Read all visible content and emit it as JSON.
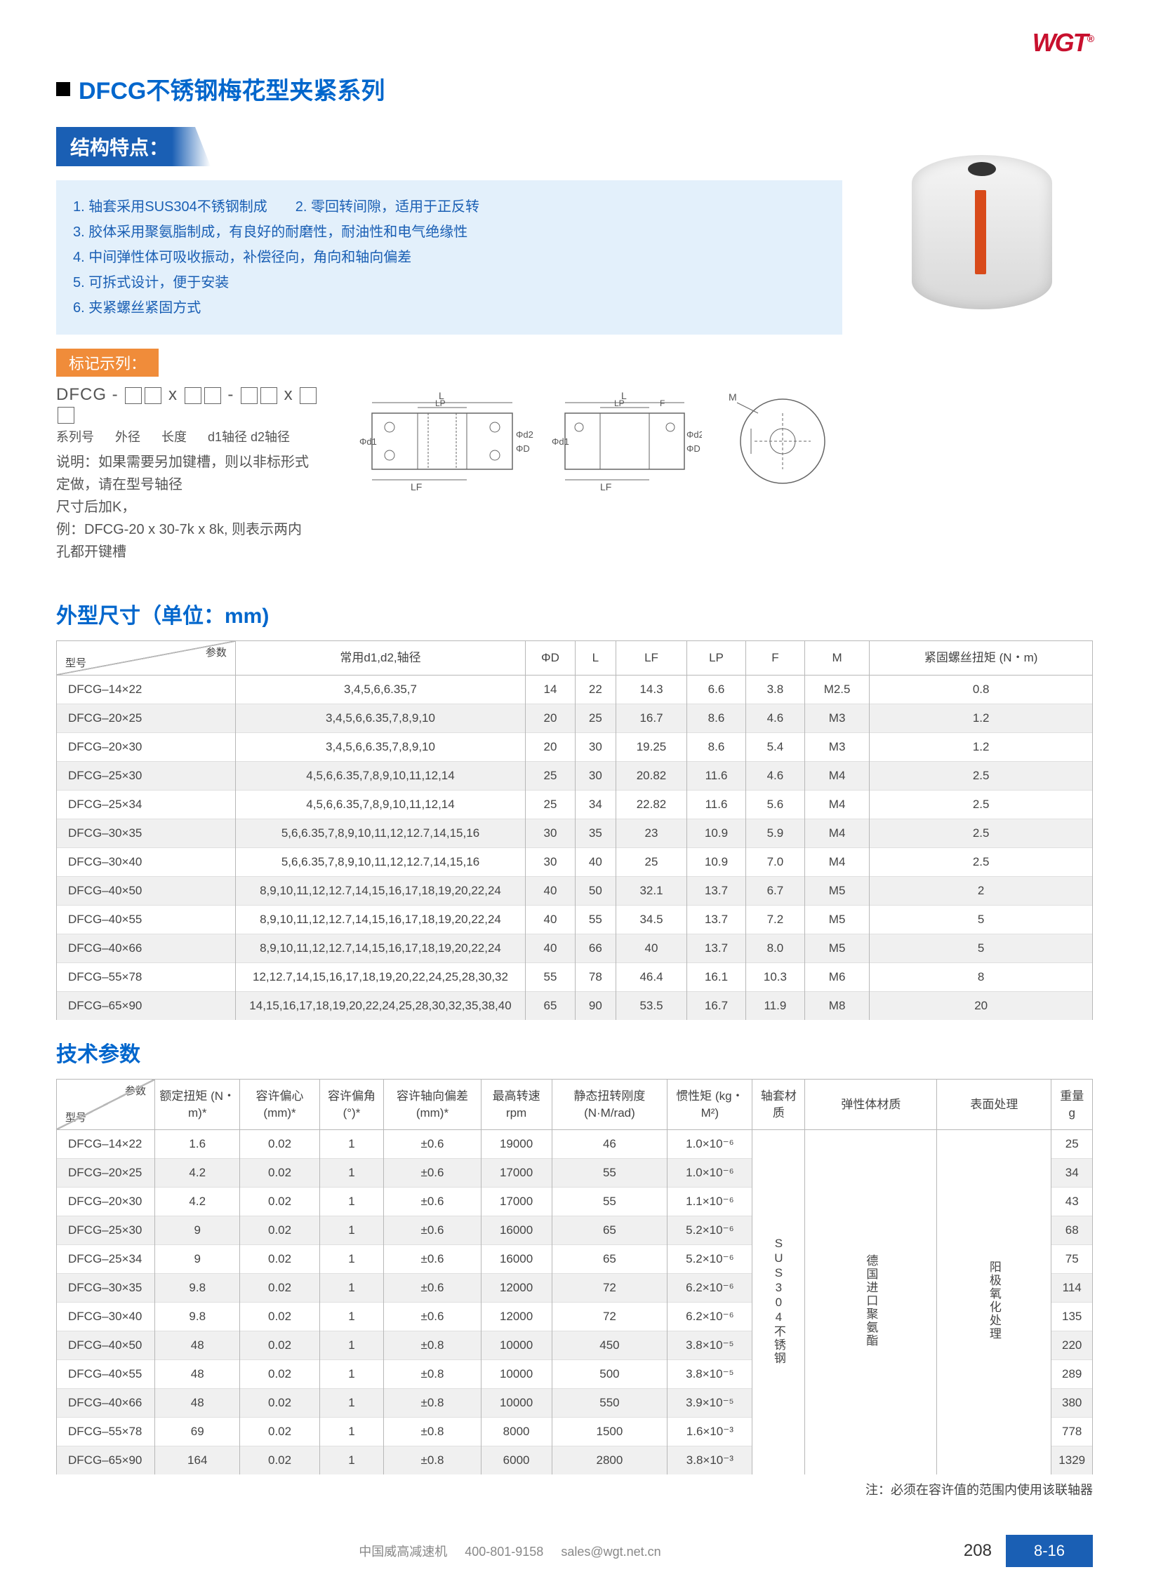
{
  "brand": "WGT",
  "main_title": "DFCG不锈钢梅花型夹紧系列",
  "section_struct": "结构特点：",
  "features": [
    "1. 轴套采用SUS304不锈钢制成",
    "2. 零回转间隙，适用于正反转",
    "3. 胶体采用聚氨脂制成，有良好的耐磨性，耐油性和电气绝缘性",
    "4. 中间弹性体可吸收振动，补偿径向，角向和轴向偏差",
    "5. 可拆式设计，便于安装",
    "6. 夹紧螺丝紧固方式"
  ],
  "marking_title": "标记示列：",
  "marking_code_prefix": "DFCG - ",
  "marking_labels": [
    "系列号",
    "外径",
    "长度",
    "d1轴径 d2轴径"
  ],
  "marking_desc_lines": [
    "说明：如果需要另加键槽，则以非标形式",
    "定做，请在型号轴径",
    "尺寸后加K，",
    "例：DFCG-20 x 30-7k x 8k, 则表示两内",
    "孔都开键槽"
  ],
  "section_dims": "外型尺寸（单位：mm)",
  "section_tech": "技术参数",
  "dims_table": {
    "header_corner": {
      "param": "参数",
      "model": "型号"
    },
    "columns": [
      "常用d1,d2,轴径",
      "ΦD",
      "L",
      "LF",
      "LP",
      "F",
      "M",
      "紧固螺丝扭矩 (N・m)"
    ],
    "rows": [
      [
        "DFCG–14×22",
        "3,4,5,6,6.35,7",
        "14",
        "22",
        "14.3",
        "6.6",
        "3.8",
        "M2.5",
        "0.8"
      ],
      [
        "DFCG–20×25",
        "3,4,5,6,6.35,7,8,9,10",
        "20",
        "25",
        "16.7",
        "8.6",
        "4.6",
        "M3",
        "1.2"
      ],
      [
        "DFCG–20×30",
        "3,4,5,6,6.35,7,8,9,10",
        "20",
        "30",
        "19.25",
        "8.6",
        "5.4",
        "M3",
        "1.2"
      ],
      [
        "DFCG–25×30",
        "4,5,6,6.35,7,8,9,10,11,12,14",
        "25",
        "30",
        "20.82",
        "11.6",
        "4.6",
        "M4",
        "2.5"
      ],
      [
        "DFCG–25×34",
        "4,5,6,6.35,7,8,9,10,11,12,14",
        "25",
        "34",
        "22.82",
        "11.6",
        "5.6",
        "M4",
        "2.5"
      ],
      [
        "DFCG–30×35",
        "5,6,6.35,7,8,9,10,11,12,12.7,14,15,16",
        "30",
        "35",
        "23",
        "10.9",
        "5.9",
        "M4",
        "2.5"
      ],
      [
        "DFCG–30×40",
        "5,6,6.35,7,8,9,10,11,12,12.7,14,15,16",
        "30",
        "40",
        "25",
        "10.9",
        "7.0",
        "M4",
        "2.5"
      ],
      [
        "DFCG–40×50",
        "8,9,10,11,12,12.7,14,15,16,17,18,19,20,22,24",
        "40",
        "50",
        "32.1",
        "13.7",
        "6.7",
        "M5",
        "2"
      ],
      [
        "DFCG–40×55",
        "8,9,10,11,12,12.7,14,15,16,17,18,19,20,22,24",
        "40",
        "55",
        "34.5",
        "13.7",
        "7.2",
        "M5",
        "5"
      ],
      [
        "DFCG–40×66",
        "8,9,10,11,12,12.7,14,15,16,17,18,19,20,22,24",
        "40",
        "66",
        "40",
        "13.7",
        "8.0",
        "M5",
        "5"
      ],
      [
        "DFCG–55×78",
        "12,12.7,14,15,16,17,18,19,20,22,24,25,28,30,32",
        "55",
        "78",
        "46.4",
        "16.1",
        "10.3",
        "M6",
        "8"
      ],
      [
        "DFCG–65×90",
        "14,15,16,17,18,19,20,22,24,25,28,30,32,35,38,40",
        "65",
        "90",
        "53.5",
        "16.7",
        "11.9",
        "M8",
        "20"
      ]
    ]
  },
  "tech_table": {
    "header_corner": {
      "param": "参数",
      "model": "型号"
    },
    "columns": [
      "额定扭矩 (N・m)*",
      "容许偏心 (mm)*",
      "容许偏角 (°)*",
      "容许轴向偏差 (mm)*",
      "最高转速 rpm",
      "静态扭转刚度 (N·M/rad)",
      "惯性矩 (kg・M²)",
      "轴套材质",
      "弹性体材质",
      "表面处理",
      "重量 g"
    ],
    "shaft_material": "SUS304不锈钢",
    "elastic_material": "德国进口聚氨酯",
    "surface_treatment": "阳极氧化处理",
    "rows": [
      [
        "DFCG–14×22",
        "1.6",
        "0.02",
        "1",
        "±0.6",
        "19000",
        "46",
        "1.0×10⁻⁶",
        "25"
      ],
      [
        "DFCG–20×25",
        "4.2",
        "0.02",
        "1",
        "±0.6",
        "17000",
        "55",
        "1.0×10⁻⁶",
        "34"
      ],
      [
        "DFCG–20×30",
        "4.2",
        "0.02",
        "1",
        "±0.6",
        "17000",
        "55",
        "1.1×10⁻⁶",
        "43"
      ],
      [
        "DFCG–25×30",
        "9",
        "0.02",
        "1",
        "±0.6",
        "16000",
        "65",
        "5.2×10⁻⁶",
        "68"
      ],
      [
        "DFCG–25×34",
        "9",
        "0.02",
        "1",
        "±0.6",
        "16000",
        "65",
        "5.2×10⁻⁶",
        "75"
      ],
      [
        "DFCG–30×35",
        "9.8",
        "0.02",
        "1",
        "±0.6",
        "12000",
        "72",
        "6.2×10⁻⁶",
        "114"
      ],
      [
        "DFCG–30×40",
        "9.8",
        "0.02",
        "1",
        "±0.6",
        "12000",
        "72",
        "6.2×10⁻⁶",
        "135"
      ],
      [
        "DFCG–40×50",
        "48",
        "0.02",
        "1",
        "±0.8",
        "10000",
        "450",
        "3.8×10⁻⁵",
        "220"
      ],
      [
        "DFCG–40×55",
        "48",
        "0.02",
        "1",
        "±0.8",
        "10000",
        "500",
        "3.8×10⁻⁵",
        "289"
      ],
      [
        "DFCG–40×66",
        "48",
        "0.02",
        "1",
        "±0.8",
        "10000",
        "550",
        "3.9×10⁻⁵",
        "380"
      ],
      [
        "DFCG–55×78",
        "69",
        "0.02",
        "1",
        "±0.8",
        "8000",
        "1500",
        "1.6×10⁻³",
        "778"
      ],
      [
        "DFCG–65×90",
        "164",
        "0.02",
        "1",
        "±0.8",
        "6000",
        "2800",
        "3.8×10⁻³",
        "1329"
      ]
    ]
  },
  "note": "注：必须在容许值的范围内使用该联轴器",
  "footer": {
    "company": "中国威高减速机",
    "phone": "400-801-9158",
    "email": "sales@wgt.net.cn",
    "page": "208",
    "tab": "8-16"
  },
  "diagram_labels": {
    "L": "L",
    "LP": "LP",
    "LF": "LF",
    "F": "F",
    "d1": "Φd1",
    "d2": "Φd2",
    "D": "ΦD",
    "M": "M"
  },
  "colors": {
    "brand_red": "#c8102e",
    "title_blue": "#0066cc",
    "tag_blue": "#1a5fb4",
    "tag_orange": "#f08c3a",
    "feature_bg": "#e3f0fb",
    "row_alt": "#f0f0f0",
    "border": "#b8b8b8",
    "coupling_orange": "#d84a1a"
  }
}
